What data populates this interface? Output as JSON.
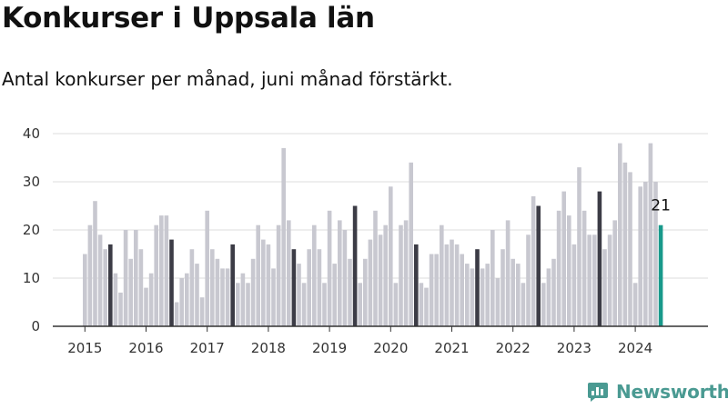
{
  "title": "Konkurser i Uppsala län",
  "subtitle": "Antal konkurser per månad, juni månad förstärkt.",
  "brand": {
    "name": "Newsworthy",
    "color": "#4a9a92"
  },
  "chart_data": {
    "type": "bar",
    "title": "",
    "xlabel": "",
    "ylabel": "",
    "ylim": [
      0,
      40
    ],
    "yticks": [
      0,
      10,
      20,
      30,
      40
    ],
    "xticks": [
      "2015",
      "2016",
      "2017",
      "2018",
      "2019",
      "2020",
      "2021",
      "2022",
      "2023",
      "2024"
    ],
    "grid": "horizontal",
    "start_month": "2015-01",
    "values": [
      15,
      21,
      26,
      19,
      16,
      17,
      11,
      7,
      20,
      14,
      20,
      16,
      8,
      11,
      21,
      23,
      23,
      18,
      5,
      10,
      11,
      16,
      13,
      6,
      24,
      16,
      14,
      12,
      12,
      17,
      9,
      11,
      9,
      14,
      21,
      18,
      17,
      12,
      21,
      37,
      22,
      16,
      13,
      9,
      16,
      21,
      16,
      9,
      24,
      13,
      22,
      20,
      14,
      25,
      9,
      14,
      18,
      24,
      19,
      21,
      29,
      9,
      21,
      22,
      34,
      17,
      9,
      8,
      15,
      15,
      21,
      17,
      18,
      17,
      15,
      13,
      12,
      16,
      12,
      13,
      20,
      10,
      16,
      22,
      14,
      13,
      9,
      19,
      27,
      25,
      9,
      12,
      14,
      24,
      28,
      23,
      17,
      33,
      24,
      19,
      19,
      28,
      16,
      19,
      22,
      38,
      34,
      32,
      9,
      29,
      30,
      38,
      30,
      21
    ],
    "highlight": "june",
    "annotation": {
      "label": "21",
      "month": "2024-06"
    },
    "colors": {
      "normal": "#c8c8d0",
      "june": "#3c3c46",
      "latest": "#18998b",
      "grid": "#dddddd",
      "axis": "#333333"
    }
  }
}
